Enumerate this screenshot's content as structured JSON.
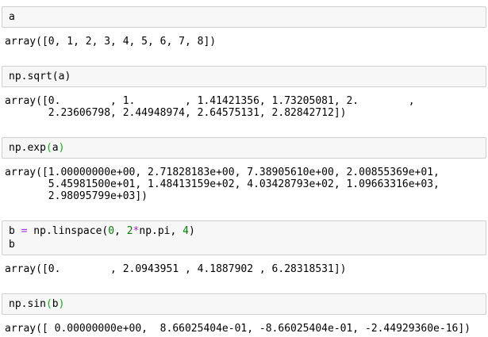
{
  "colors": {
    "input_background": "#f7f7f7",
    "input_border": "#cfcfcf",
    "code_text": "#000000",
    "number_token": "#008000",
    "operator_token": "#aa22ff",
    "matching_bracket": "#00bb00",
    "output_text": "#000000",
    "page_background": "#ffffff"
  },
  "notebook": {
    "cells": [
      {
        "input_lines": [
          [
            {
              "t": "a",
              "c": "plain"
            }
          ]
        ],
        "output": "array([0, 1, 2, 3, 4, 5, 6, 7, 8])"
      },
      {
        "input_lines": [
          [
            {
              "t": "np.sqrt(a)",
              "c": "plain"
            }
          ]
        ],
        "output": "array([0.        , 1.        , 1.41421356, 1.73205081, 2.        ,\n       2.23606798, 2.44948974, 2.64575131, 2.82842712])"
      },
      {
        "input_lines": [
          [
            {
              "t": "np.exp",
              "c": "plain"
            },
            {
              "t": "(",
              "c": "bracket"
            },
            {
              "t": "a",
              "c": "plain"
            },
            {
              "t": ")",
              "c": "bracket"
            }
          ]
        ],
        "output": "array([1.00000000e+00, 2.71828183e+00, 7.38905610e+00, 2.00855369e+01,\n       5.45981500e+01, 1.48413159e+02, 4.03428793e+02, 1.09663316e+03,\n       2.98095799e+03])"
      },
      {
        "input_lines": [
          [
            {
              "t": "b ",
              "c": "plain"
            },
            {
              "t": "=",
              "c": "operator"
            },
            {
              "t": " np.linspace(",
              "c": "plain"
            },
            {
              "t": "0",
              "c": "number"
            },
            {
              "t": ", ",
              "c": "plain"
            },
            {
              "t": "2",
              "c": "number"
            },
            {
              "t": "*",
              "c": "operator"
            },
            {
              "t": "np.pi, ",
              "c": "plain"
            },
            {
              "t": "4",
              "c": "number"
            },
            {
              "t": ")",
              "c": "plain"
            }
          ],
          [
            {
              "t": "b",
              "c": "plain"
            }
          ]
        ],
        "output": "array([0.        , 2.0943951 , 4.1887902 , 6.28318531])"
      },
      {
        "input_lines": [
          [
            {
              "t": "np.sin",
              "c": "plain"
            },
            {
              "t": "(",
              "c": "bracket"
            },
            {
              "t": "b",
              "c": "plain"
            },
            {
              "t": ")",
              "c": "bracket"
            }
          ]
        ],
        "output": "array([ 0.00000000e+00,  8.66025404e-01, -8.66025404e-01, -2.44929360e-16])"
      }
    ]
  }
}
